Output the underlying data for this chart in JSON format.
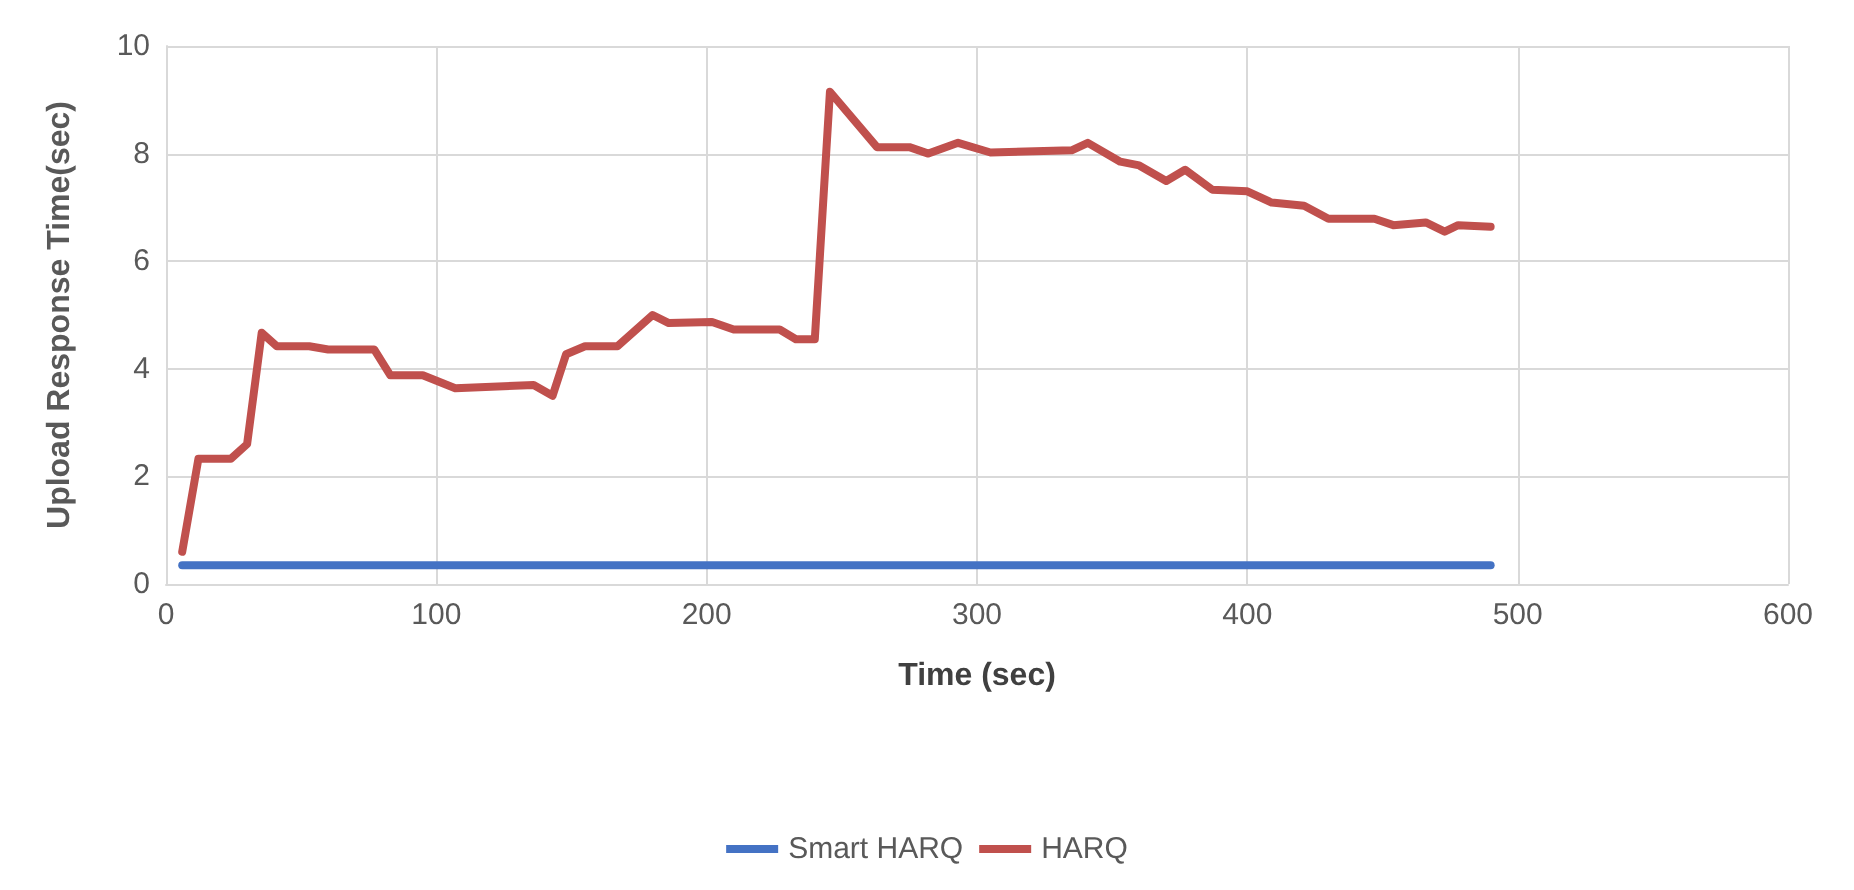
{
  "chart_data": {
    "type": "line",
    "xlabel": "Time (sec)",
    "ylabel": "Upload Response Time(sec)",
    "xlim": [
      0,
      600
    ],
    "xticks": [
      0,
      100,
      200,
      300,
      400,
      500,
      600
    ],
    "ylim": [
      0,
      10
    ],
    "yticks": [
      0,
      2,
      4,
      6,
      8,
      10
    ],
    "grid": true,
    "legend": "bottom",
    "marker": "none",
    "line_style": "solid",
    "series": [
      {
        "name": "Smart HARQ",
        "color": "#4472c4",
        "x": [
          6,
          490
        ],
        "values": [
          0.35,
          0.35
        ]
      },
      {
        "name": "HARQ",
        "color": "#c0504d",
        "x": [
          6,
          12,
          24,
          30,
          35.4,
          41,
          53,
          60,
          77,
          83,
          95,
          107,
          136,
          143,
          148,
          155,
          167,
          180,
          186,
          202,
          210,
          227,
          233,
          240,
          245.6,
          263,
          275,
          282,
          293,
          305,
          335,
          341,
          353,
          360,
          370,
          377,
          387,
          400,
          409,
          421,
          430,
          447,
          454,
          466,
          473,
          478,
          490
        ],
        "values": [
          0.6,
          2.33,
          2.33,
          2.6,
          4.67,
          4.42,
          4.42,
          4.36,
          4.36,
          3.88,
          3.88,
          3.64,
          3.7,
          3.5,
          4.27,
          4.42,
          4.42,
          5.0,
          4.85,
          4.87,
          4.73,
          4.73,
          4.55,
          4.55,
          9.15,
          8.12,
          8.12,
          8.0,
          8.2,
          8.02,
          8.06,
          8.2,
          7.85,
          7.78,
          7.49,
          7.7,
          7.33,
          7.3,
          7.09,
          7.03,
          6.79,
          6.79,
          6.67,
          6.72,
          6.55,
          6.67,
          6.64
        ]
      }
    ]
  }
}
